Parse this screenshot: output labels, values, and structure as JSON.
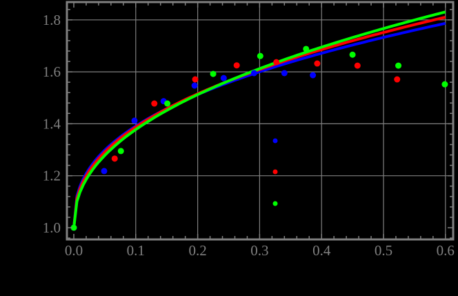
{
  "chart_data": {
    "type": "scatter",
    "title": "",
    "xlabel": "",
    "ylabel": "",
    "xlim": [
      -0.01,
      0.61
    ],
    "ylim": [
      0.95,
      1.87
    ],
    "grid": true,
    "x_ticks": [
      "0.0",
      "0.1",
      "0.2",
      "0.3",
      "0.4",
      "0.5",
      "0.6"
    ],
    "y_ticks": [
      "1.0",
      "1.2",
      "1.4",
      "1.6",
      "1.8"
    ],
    "legend_position": "inside-right",
    "series": [
      {
        "name": "",
        "color": "#0000ff",
        "points": [
          [
            0.0,
            1.0
          ],
          [
            0.049,
            1.218
          ],
          [
            0.098,
            1.412
          ],
          [
            0.145,
            1.487
          ],
          [
            0.195,
            1.547
          ],
          [
            0.242,
            1.576
          ],
          [
            0.291,
            1.595
          ],
          [
            0.34,
            1.595
          ],
          [
            0.386,
            1.587
          ]
        ],
        "fit": {
          "a": 0.96,
          "b": 0.39
        }
      },
      {
        "name": "",
        "color": "#ff0000",
        "points": [
          [
            0.066,
            1.266
          ],
          [
            0.13,
            1.478
          ],
          [
            0.196,
            1.571
          ],
          [
            0.263,
            1.625
          ],
          [
            0.327,
            1.637
          ],
          [
            0.393,
            1.632
          ],
          [
            0.458,
            1.624
          ],
          [
            0.522,
            1.571
          ]
        ],
        "fit": {
          "a": 1.0,
          "b": 0.412
        }
      },
      {
        "name": "",
        "color": "#00ff00",
        "points": [
          [
            0.0,
            1.0
          ],
          [
            0.076,
            1.295
          ],
          [
            0.151,
            1.478
          ],
          [
            0.225,
            1.592
          ],
          [
            0.301,
            1.661
          ],
          [
            0.375,
            1.688
          ],
          [
            0.45,
            1.666
          ],
          [
            0.524,
            1.624
          ],
          [
            0.599,
            1.552
          ]
        ],
        "fit": {
          "a": 1.04,
          "b": 0.44
        }
      }
    ]
  },
  "colors": {
    "background": "#000000",
    "axis": "#808080",
    "grid": "#808080"
  }
}
